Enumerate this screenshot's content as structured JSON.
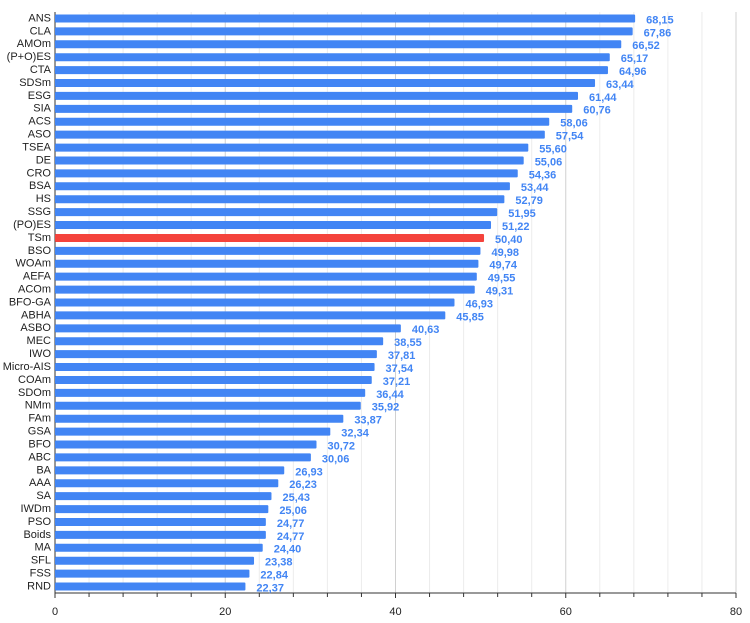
{
  "chart_data": {
    "type": "hbar",
    "categories": [
      "ANS",
      "CLA",
      "AMOm",
      "(P+O)ES",
      "CTA",
      "SDSm",
      "ESG",
      "SIA",
      "ACS",
      "ASO",
      "TSEA",
      "DE",
      "CRO",
      "BSA",
      "HS",
      "SSG",
      "(PO)ES",
      "TSm",
      "BSO",
      "WOAm",
      "AEFA",
      "ACOm",
      "BFO-GA",
      "ABHA",
      "ASBO",
      "MEC",
      "IWO",
      "Micro-AIS",
      "COAm",
      "SDOm",
      "NMm",
      "FAm",
      "GSA",
      "BFO",
      "ABC",
      "BA",
      "AAA",
      "SA",
      "IWDm",
      "PSO",
      "Boids",
      "MA",
      "SFL",
      "FSS",
      "RND"
    ],
    "values": [
      68.15,
      67.86,
      66.52,
      65.17,
      64.96,
      63.44,
      61.44,
      60.76,
      58.06,
      57.54,
      55.6,
      55.06,
      54.36,
      53.44,
      52.79,
      51.95,
      51.22,
      50.4,
      49.98,
      49.74,
      49.55,
      49.31,
      46.93,
      45.85,
      40.63,
      38.55,
      37.81,
      37.54,
      37.21,
      36.44,
      35.92,
      33.87,
      32.34,
      30.72,
      30.06,
      26.93,
      26.23,
      25.43,
      25.06,
      24.77,
      24.77,
      24.4,
      23.38,
      22.84,
      22.37
    ],
    "value_labels": [
      "68,15",
      "67,86",
      "66,52",
      "65,17",
      "64,96",
      "63,44",
      "61,44",
      "60,76",
      "58,06",
      "57,54",
      "55,60",
      "55,06",
      "54,36",
      "53,44",
      "52,79",
      "51,95",
      "51,22",
      "50,40",
      "49,98",
      "49,74",
      "49,55",
      "49,31",
      "46,93",
      "45,85",
      "40,63",
      "38,55",
      "37,81",
      "37,54",
      "37,21",
      "36,44",
      "35,92",
      "33,87",
      "32,34",
      "30,72",
      "30,06",
      "26,93",
      "26,23",
      "25,43",
      "25,06",
      "24,77",
      "24,77",
      "24,40",
      "23,38",
      "22,84",
      "22,37"
    ],
    "color": "#4285f4",
    "highlight": {
      "category": "TSm",
      "color": "#f4433c"
    },
    "label_color": "#4285f4",
    "xlim": [
      0,
      80
    ],
    "xticks": [
      0,
      20,
      40,
      60,
      80
    ],
    "minor_xticks": [
      4,
      8,
      12,
      16,
      24,
      28,
      32,
      36,
      44,
      48,
      52,
      56,
      64,
      68,
      72,
      76
    ],
    "grid": true
  }
}
